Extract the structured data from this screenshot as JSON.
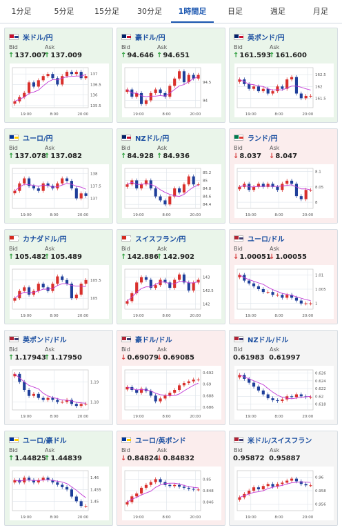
{
  "tabs": [
    "1分足",
    "5分足",
    "15分足",
    "30分足",
    "1時間足",
    "日足",
    "週足",
    "月足"
  ],
  "active_tab": 4,
  "labels": {
    "bid": "Bid",
    "ask": "Ask"
  },
  "cards": [
    {
      "pair": "米ドル/円",
      "trend": "up",
      "bid": "137.007",
      "ask": "137.009",
      "bid_dir": "up",
      "ask_dir": "up",
      "flag": [
        "#c8102e",
        "#1d3c87"
      ],
      "yticks": [
        "137",
        "136.5",
        "136",
        "135.5"
      ],
      "ymin": 135.4,
      "ymax": 137.3,
      "xticks": [
        "19:00",
        "8:00",
        "20:00"
      ],
      "chart_data": {
        "type": "candlestick",
        "series": [
          135.7,
          135.9,
          136.1,
          136.6,
          136.4,
          136.7,
          136.9,
          137.0,
          136.8,
          136.5,
          136.9,
          137.1,
          137.0,
          137.1,
          136.8,
          136.9
        ]
      }
    },
    {
      "pair": "豪ドル/円",
      "trend": "up",
      "bid": "94.646",
      "ask": "94.651",
      "bid_dir": "up",
      "ask_dir": "up",
      "flag": [
        "#012169",
        "#c8102e"
      ],
      "yticks": [
        "94.5",
        "94"
      ],
      "ymin": 93.8,
      "ymax": 94.9,
      "xticks": [
        "19:00",
        "8:00",
        "20:00"
      ],
      "chart_data": {
        "type": "candlestick",
        "series": [
          94.3,
          94.1,
          94.2,
          93.9,
          94.0,
          94.2,
          94.3,
          94.2,
          94.1,
          94.4,
          94.6,
          94.8,
          94.5,
          94.7,
          94.6,
          94.7
        ]
      }
    },
    {
      "pair": "英ポンド/円",
      "trend": "up",
      "bid": "161.593",
      "ask": "161.600",
      "bid_dir": "up",
      "ask_dir": "up",
      "flag": [
        "#012169",
        "#c8102e"
      ],
      "yticks": [
        "162.5",
        "162",
        "161.5"
      ],
      "ymin": 161.1,
      "ymax": 162.8,
      "xticks": [
        "19:00",
        "8:00",
        "20:00"
      ],
      "chart_data": {
        "type": "candlestick",
        "series": [
          162.3,
          162.1,
          161.9,
          162.0,
          161.8,
          161.9,
          161.7,
          161.8,
          162.0,
          161.9,
          162.3,
          162.4,
          161.7,
          161.5,
          161.6,
          161.6
        ]
      }
    },
    {
      "pair": "ユーロ/円",
      "trend": "up",
      "bid": "137.078",
      "ask": "137.082",
      "bid_dir": "up",
      "ask_dir": "up",
      "flag": [
        "#003399",
        "#ffcc00"
      ],
      "yticks": [
        "138",
        "137.5",
        "137"
      ],
      "ymin": 136.6,
      "ymax": 138.2,
      "xticks": [
        "19:00",
        "8:00",
        "20:00"
      ],
      "chart_data": {
        "type": "candlestick",
        "series": [
          137.3,
          137.6,
          137.8,
          137.5,
          137.4,
          137.3,
          137.6,
          137.5,
          137.4,
          137.6,
          137.8,
          137.7,
          137.4,
          137.0,
          137.2,
          137.1
        ]
      }
    },
    {
      "pair": "NZドル/円",
      "trend": "up",
      "bid": "84.928",
      "ask": "84.936",
      "bid_dir": "up",
      "ask_dir": "up",
      "flag": [
        "#012169",
        "#c8102e"
      ],
      "yticks": [
        "85.2",
        "85",
        "84.8",
        "84.6",
        "84.4"
      ],
      "ymin": 84.3,
      "ymax": 85.3,
      "xticks": [
        "19:00",
        "8:00",
        "20:00"
      ],
      "chart_data": {
        "type": "candlestick",
        "series": [
          84.9,
          85.0,
          84.8,
          84.9,
          85.0,
          84.8,
          84.6,
          84.5,
          84.4,
          84.6,
          84.8,
          84.7,
          84.9,
          85.1,
          84.9,
          84.9
        ]
      }
    },
    {
      "pair": "ランド/円",
      "trend": "down",
      "bid": "8.037",
      "ask": "8.047",
      "bid_dir": "down",
      "ask_dir": "down",
      "flag": [
        "#007a4d",
        "#de3831"
      ],
      "yticks": [
        "8.1",
        "8.05",
        "8"
      ],
      "ymin": 7.98,
      "ymax": 8.11,
      "xticks": [
        "19:00",
        "8:00",
        "20:00"
      ],
      "chart_data": {
        "type": "candlestick",
        "series": [
          8.05,
          8.06,
          8.04,
          8.05,
          8.06,
          8.05,
          8.06,
          8.05,
          8.04,
          8.06,
          8.07,
          8.06,
          8.02,
          8.01,
          8.04,
          8.04
        ]
      }
    },
    {
      "pair": "カナダドル/円",
      "trend": "up",
      "bid": "105.482",
      "ask": "105.489",
      "bid_dir": "up",
      "ask_dir": "up",
      "flag": [
        "#d52b1e",
        "#ffffff"
      ],
      "yticks": [
        "105.5",
        "105"
      ],
      "ymin": 104.7,
      "ymax": 105.8,
      "xticks": [
        "19:00",
        "8:00",
        "20:00"
      ],
      "chart_data": {
        "type": "candlestick",
        "series": [
          105.0,
          105.2,
          105.3,
          105.1,
          105.2,
          105.4,
          105.3,
          105.2,
          105.4,
          105.6,
          105.5,
          105.4,
          105.0,
          105.1,
          105.4,
          105.5
        ]
      }
    },
    {
      "pair": "スイスフラン/円",
      "trend": "up",
      "bid": "142.886",
      "ask": "142.902",
      "bid_dir": "up",
      "ask_dir": "up",
      "flag": [
        "#d52b1e",
        "#ffffff"
      ],
      "yticks": [
        "143",
        "142.5",
        "142"
      ],
      "ymin": 141.8,
      "ymax": 143.3,
      "xticks": [
        "19:00",
        "8:00",
        "20:00"
      ],
      "chart_data": {
        "type": "candlestick",
        "series": [
          142.1,
          142.4,
          142.8,
          143.0,
          142.9,
          142.6,
          142.7,
          142.9,
          142.8,
          142.6,
          142.9,
          143.1,
          142.8,
          142.5,
          142.8,
          142.9
        ]
      }
    },
    {
      "pair": "ユーロ/ドル",
      "trend": "down",
      "bid": "1.00051",
      "ask": "1.00055",
      "bid_dir": "down",
      "ask_dir": "down",
      "flag": [
        "#b22234",
        "#3c3b6e"
      ],
      "yticks": [
        "1.01",
        "1.005",
        "1"
      ],
      "ymin": 0.998,
      "ymax": 1.012,
      "xticks": [
        "19:00",
        "8:00",
        "20:00"
      ],
      "chart_data": {
        "type": "candlestick",
        "series": [
          1.01,
          1.008,
          1.007,
          1.006,
          1.005,
          1.004,
          1.004,
          1.003,
          1.003,
          1.002,
          1.003,
          1.002,
          1.001,
          1.0,
          1.0,
          1.0
        ]
      }
    },
    {
      "pair": "英ポンド/ドル",
      "trend": "neutral",
      "bid": "1.17943",
      "ask": "1.17950",
      "bid_dir": "up",
      "ask_dir": "up",
      "flag": [
        "#b22234",
        "#3c3b6e"
      ],
      "yticks": [
        "1.19",
        "1.18"
      ],
      "ymin": 1.176,
      "ymax": 1.196,
      "xticks": [
        "19:00",
        "8:00",
        "20:00"
      ],
      "chart_data": {
        "type": "candlestick",
        "series": [
          1.194,
          1.19,
          1.186,
          1.183,
          1.184,
          1.182,
          1.181,
          1.182,
          1.181,
          1.18,
          1.18,
          1.181,
          1.179,
          1.178,
          1.179,
          1.179
        ]
      }
    },
    {
      "pair": "豪ドル/ドル",
      "trend": "down",
      "bid": "0.69079",
      "ask": "0.69085",
      "bid_dir": "down",
      "ask_dir": "down",
      "flag": [
        "#b22234",
        "#3c3b6e"
      ],
      "yticks": [
        "0.692",
        "0.69",
        "0.688",
        "0.686"
      ],
      "ymin": 0.6855,
      "ymax": 0.6925,
      "xticks": [
        "19:00",
        "8:00",
        "20:00"
      ],
      "chart_data": {
        "type": "candlestick",
        "series": [
          0.6895,
          0.689,
          0.6885,
          0.6892,
          0.6888,
          0.688,
          0.687,
          0.6875,
          0.688,
          0.6885,
          0.689,
          0.6898,
          0.6902,
          0.6905,
          0.6908,
          0.6908
        ]
      }
    },
    {
      "pair": "NZドル/ドル",
      "trend": "neutral",
      "bid": "0.61983",
      "ask": "0.61997",
      "bid_dir": "none",
      "ask_dir": "none",
      "flag": [
        "#b22234",
        "#3c3b6e"
      ],
      "yticks": [
        "0.626",
        "0.624",
        "0.622",
        "0.62",
        "0.618"
      ],
      "ymin": 0.6165,
      "ymax": 0.6268,
      "xticks": [
        "19:00",
        "8:00",
        "20:00"
      ],
      "chart_data": {
        "type": "candlestick",
        "series": [
          0.6255,
          0.6245,
          0.6235,
          0.6225,
          0.6215,
          0.6205,
          0.6195,
          0.619,
          0.6188,
          0.6192,
          0.62,
          0.6198,
          0.6205,
          0.62,
          0.6198,
          0.6198
        ]
      }
    },
    {
      "pair": "ユーロ/豪ドル",
      "trend": "up",
      "bid": "1.44825",
      "ask": "1.44839",
      "bid_dir": "up",
      "ask_dir": "up",
      "flag": [
        "#003399",
        "#ffcc00"
      ],
      "yticks": [
        "1.46",
        "1.455",
        "1.45"
      ],
      "ymin": 1.446,
      "ymax": 1.463,
      "xticks": [
        "19:00",
        "8:00",
        "20:00"
      ],
      "chart_data": {
        "type": "candlestick",
        "series": [
          1.459,
          1.458,
          1.46,
          1.459,
          1.458,
          1.459,
          1.46,
          1.459,
          1.458,
          1.457,
          1.456,
          1.455,
          1.452,
          1.45,
          1.448,
          1.448
        ]
      }
    },
    {
      "pair": "ユーロ/英ポンド",
      "trend": "down",
      "bid": "0.84824",
      "ask": "0.84832",
      "bid_dir": "down",
      "ask_dir": "down",
      "flag": [
        "#003399",
        "#ffcc00"
      ],
      "yticks": [
        "0.85",
        "0.848",
        "0.846"
      ],
      "ymin": 0.8445,
      "ymax": 0.8515,
      "xticks": [
        "19:00",
        "8:00",
        "20:00"
      ],
      "chart_data": {
        "type": "candlestick",
        "series": [
          0.846,
          0.847,
          0.8475,
          0.8485,
          0.849,
          0.8495,
          0.85,
          0.8495,
          0.849,
          0.8488,
          0.849,
          0.8487,
          0.8485,
          0.8483,
          0.8482,
          0.8482
        ]
      }
    },
    {
      "pair": "米ドル/スイスフラン",
      "trend": "neutral",
      "bid": "0.95872",
      "ask": "0.95887",
      "bid_dir": "none",
      "ask_dir": "none",
      "flag": [
        "#b22234",
        "#3c3b6e"
      ],
      "yticks": [
        "0.96",
        "0.958",
        "0.956"
      ],
      "ymin": 0.955,
      "ymax": 0.961,
      "xticks": [
        "19:00",
        "8:00",
        "20:00"
      ],
      "chart_data": {
        "type": "candlestick",
        "series": [
          0.957,
          0.9575,
          0.958,
          0.9585,
          0.9582,
          0.9587,
          0.959,
          0.9586,
          0.959,
          0.9592,
          0.9595,
          0.9598,
          0.9594,
          0.959,
          0.9588,
          0.9588
        ]
      }
    }
  ]
}
